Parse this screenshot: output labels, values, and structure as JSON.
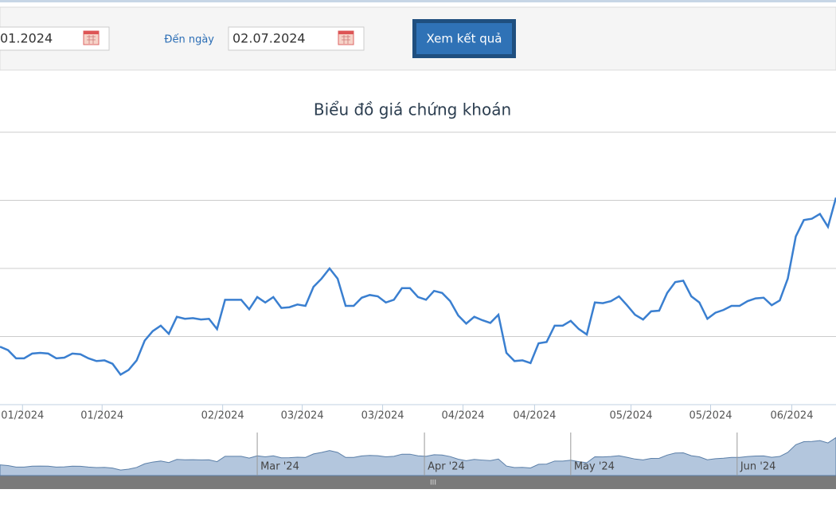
{
  "form": {
    "from_date": "01.2024",
    "to_label": "Đến ngày",
    "to_date": "02.07.2024",
    "submit": "Xem kết quả"
  },
  "chart_data": {
    "type": "line",
    "title": "Biểu đồ giá chứng khoán",
    "color": "#3a7fd0",
    "values": [
      0.85,
      0.8,
      0.68,
      0.68,
      0.75,
      0.76,
      0.75,
      0.68,
      0.69,
      0.75,
      0.74,
      0.68,
      0.64,
      0.65,
      0.6,
      0.44,
      0.51,
      0.65,
      0.94,
      1.08,
      1.16,
      1.04,
      1.29,
      1.26,
      1.27,
      1.25,
      1.26,
      1.11,
      1.54,
      1.54,
      1.54,
      1.4,
      1.58,
      1.5,
      1.58,
      1.42,
      1.43,
      1.47,
      1.45,
      1.73,
      1.85,
      2.0,
      1.85,
      1.45,
      1.45,
      1.57,
      1.61,
      1.59,
      1.5,
      1.54,
      1.71,
      1.71,
      1.58,
      1.54,
      1.67,
      1.64,
      1.52,
      1.31,
      1.19,
      1.29,
      1.24,
      1.2,
      1.32,
      0.76,
      0.64,
      0.65,
      0.61,
      0.9,
      0.92,
      1.16,
      1.16,
      1.23,
      1.11,
      1.03,
      1.5,
      1.49,
      1.52,
      1.59,
      1.46,
      1.32,
      1.25,
      1.37,
      1.38,
      1.64,
      1.8,
      1.82,
      1.59,
      1.5,
      1.26,
      1.35,
      1.39,
      1.45,
      1.45,
      1.52,
      1.56,
      1.57,
      1.46,
      1.53,
      1.85,
      2.47,
      2.71,
      2.73,
      2.8,
      2.61,
      3.04
    ],
    "xlim": [
      0,
      104
    ],
    "xticks": [
      {
        "value": 2.8,
        "label": "01/2024"
      },
      {
        "value": 12.7,
        "label": "01/2024"
      },
      {
        "value": 27.7,
        "label": "02/2024"
      },
      {
        "value": 37.6,
        "label": "03/2024"
      },
      {
        "value": 47.6,
        "label": "03/2024"
      },
      {
        "value": 57.6,
        "label": "04/2024"
      },
      {
        "value": 66.5,
        "label": "04/2024"
      },
      {
        "value": 78.5,
        "label": "05/2024"
      },
      {
        "value": 88.4,
        "label": "05/2024"
      },
      {
        "value": 98.5,
        "label": "06/2024"
      }
    ],
    "ylim": [
      0,
      4
    ],
    "grid_values": [
      1,
      2,
      3,
      4
    ],
    "navigator": {
      "ticks": [
        {
          "value": 32.0,
          "label": "Mar '24"
        },
        {
          "value": 52.8,
          "label": "Apr '24"
        },
        {
          "value": 71.0,
          "label": "May '24"
        },
        {
          "value": 91.7,
          "label": "Jun '24"
        }
      ],
      "handle": "III"
    }
  }
}
